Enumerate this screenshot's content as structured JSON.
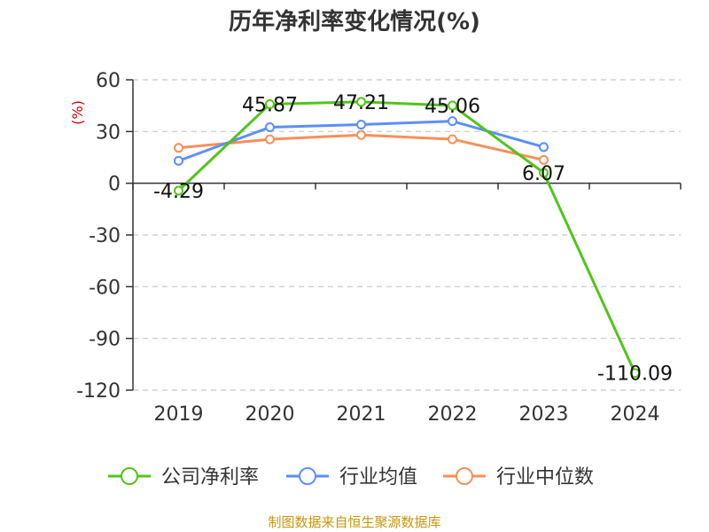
{
  "chart_data": {
    "type": "line",
    "title": "历年净利率变化情况(%)",
    "ylabel": "(%)",
    "categories": [
      "2019",
      "2020",
      "2021",
      "2022",
      "2023",
      "2024"
    ],
    "ylim": [
      -120,
      60
    ],
    "yticks": [
      60,
      30,
      0,
      -30,
      -60,
      -90,
      -120
    ],
    "grid": true,
    "legend_position": "bottom",
    "series": [
      {
        "name": "公司净利率",
        "color": "#52c41a",
        "values": [
          -4.29,
          45.87,
          47.21,
          45.06,
          6.07,
          -110.09
        ],
        "labels": [
          "-4.29",
          "45.87",
          "47.21",
          "45.06",
          "6.07",
          "-110.09"
        ]
      },
      {
        "name": "行业均值",
        "color": "#5b8ff9",
        "values": [
          13,
          32.5,
          34,
          36,
          21,
          null
        ]
      },
      {
        "name": "行业中位数",
        "color": "#f6905a",
        "values": [
          20.5,
          25.5,
          28,
          25.5,
          13.5,
          null
        ]
      }
    ]
  },
  "footer": {
    "source": "制图数据来自恒生聚源数据库"
  }
}
